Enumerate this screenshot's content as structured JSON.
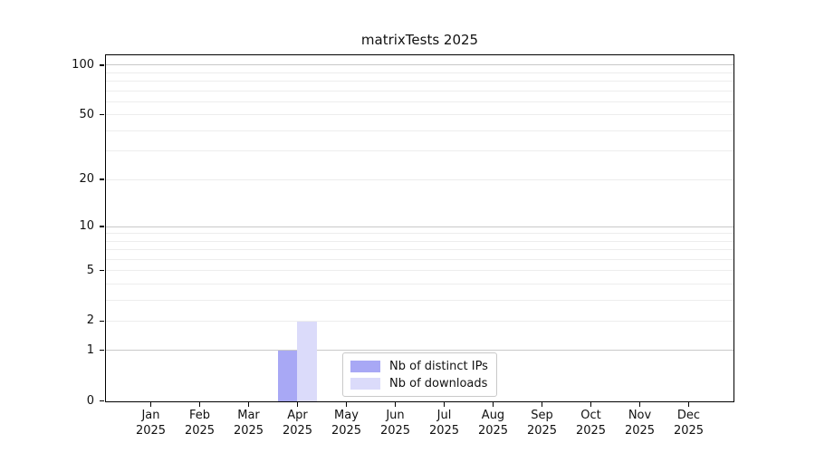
{
  "title": "matrixTests 2025",
  "chart_data": {
    "type": "bar",
    "title": "matrixTests 2025",
    "categories": [
      "Jan",
      "Feb",
      "Mar",
      "Apr",
      "May",
      "Jun",
      "Jul",
      "Aug",
      "Sep",
      "Oct",
      "Nov",
      "Dec"
    ],
    "category_year": "2025",
    "series": [
      {
        "name": "Nb of distinct IPs",
        "color": "#a8a8f5",
        "values": [
          0,
          0,
          0,
          1,
          0,
          0,
          0,
          0,
          0,
          0,
          0,
          0
        ]
      },
      {
        "name": "Nb of downloads",
        "color": "#dbdbfa",
        "values": [
          0,
          0,
          0,
          2,
          0,
          0,
          0,
          0,
          0,
          0,
          0,
          0
        ]
      }
    ],
    "yscale": "log1p",
    "ylim": [
      0,
      114
    ],
    "ytick_values": [
      0,
      1,
      2,
      5,
      10,
      20,
      50,
      100
    ],
    "major_grid_values": [
      1,
      10,
      100
    ],
    "minor_grid_values": [
      2,
      3,
      4,
      5,
      6,
      7,
      8,
      9,
      20,
      30,
      40,
      50,
      60,
      70,
      80,
      90
    ],
    "grid": "on",
    "legend_position": "bottom-center-inside",
    "colors": {
      "grid_major": "#c9c9c9",
      "grid_minor": "#ededed",
      "spine": "#000000",
      "text": "#111111"
    }
  }
}
